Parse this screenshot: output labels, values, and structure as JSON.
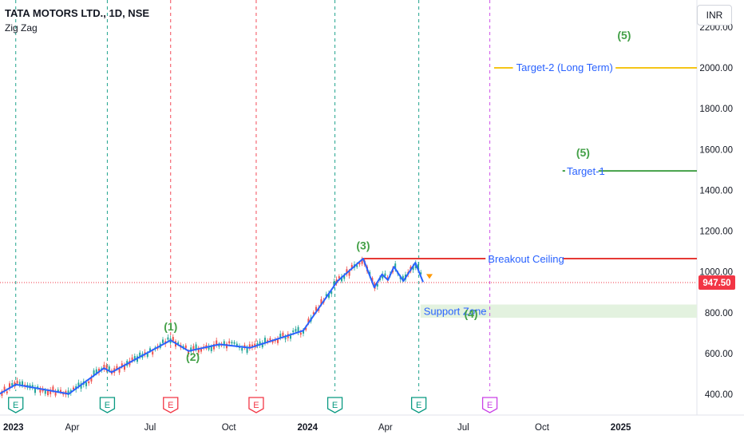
{
  "header": {
    "symbol_title": "TATA MOTORS LTD., 1D, NSE",
    "indicator": "Zig Zag",
    "currency": "INR"
  },
  "colors": {
    "zigzag": "#2962ff",
    "candle_up": "#26a69a",
    "candle_down": "#ef5350",
    "target2": "#f5c518",
    "target1": "#43a047",
    "breakout": "#e53935",
    "support_fill": "#e3f2df",
    "wave_label": "#43a047",
    "text_blue": "#2962ff",
    "price_badge": "#f23645",
    "earnings_green": "#089981",
    "earnings_red": "#f23645",
    "earnings_purple": "#c940e6"
  },
  "chart_data": {
    "type": "line",
    "title": "TATA MOTORS LTD., 1D, NSE",
    "indicator": "Zig Zag",
    "y_axis": {
      "ticks": [
        "400.00",
        "600.00",
        "800.00",
        "1000.00",
        "1200.00",
        "1400.00",
        "1600.00",
        "1800.00",
        "2000.00",
        "2200.00"
      ],
      "range": [
        320,
        2270
      ]
    },
    "x_axis": {
      "labels": [
        "2023",
        "Apr",
        "Jul",
        "Oct",
        "2024",
        "Apr",
        "Jul",
        "Oct",
        "2025"
      ],
      "start": "2023-01-01",
      "end": "2025-03-31"
    },
    "series": [
      {
        "type": "zigzag",
        "points": [
          {
            "x": "2023-01-01",
            "y": 390
          },
          {
            "x": "2023-01-25",
            "y": 448
          },
          {
            "x": "2023-03-28",
            "y": 402
          },
          {
            "x": "2023-05-08",
            "y": 528
          },
          {
            "x": "2023-05-17",
            "y": 508
          },
          {
            "x": "2023-07-25",
            "y": 665
          },
          {
            "x": "2023-08-15",
            "y": 612
          },
          {
            "x": "2023-09-20",
            "y": 645
          },
          {
            "x": "2023-10-26",
            "y": 628
          },
          {
            "x": "2023-12-27",
            "y": 712
          },
          {
            "x": "2024-02-05",
            "y": 955
          },
          {
            "x": "2024-03-06",
            "y": 1065
          },
          {
            "x": "2024-03-19",
            "y": 924
          },
          {
            "x": "2024-03-28",
            "y": 988
          },
          {
            "x": "2024-04-04",
            "y": 960
          },
          {
            "x": "2024-04-11",
            "y": 1025
          },
          {
            "x": "2024-04-22",
            "y": 955
          },
          {
            "x": "2024-05-06",
            "y": 1045
          },
          {
            "x": "2024-05-15",
            "y": 950
          }
        ]
      }
    ],
    "levels": [
      {
        "label": "Target-2 (Long Term)",
        "value": 2000
      },
      {
        "label": "Target-1",
        "value": 1495
      },
      {
        "label": "Breakout Ceiling",
        "value": 1065
      }
    ],
    "zones": [
      {
        "label": "Support Zone",
        "from": 775,
        "to": 840
      }
    ],
    "last_price": "947.50",
    "last_price_value": 947.5,
    "wave_labels": [
      {
        "text": "(1)",
        "x": "2023-07-25",
        "y": 712
      },
      {
        "text": "(2)",
        "x": "2023-08-20",
        "y": 565
      },
      {
        "text": "(3)",
        "x": "2024-03-06",
        "y": 1110
      },
      {
        "text": "(4)",
        "x": "2024-07-10",
        "y": 775
      },
      {
        "text": "(5)",
        "x": "2024-11-18",
        "y": 1565
      },
      {
        "text": "(5)",
        "x": "2025-01-05",
        "y": 2140
      }
    ],
    "earnings_markers": [
      {
        "date": "2023-01-25",
        "label": "E",
        "color": "green"
      },
      {
        "date": "2023-05-12",
        "label": "E",
        "color": "green"
      },
      {
        "date": "2023-07-25",
        "label": "E",
        "color": "red"
      },
      {
        "date": "2023-11-02",
        "label": "E",
        "color": "red"
      },
      {
        "date": "2024-02-02",
        "label": "E",
        "color": "green"
      },
      {
        "date": "2024-05-10",
        "label": "E",
        "color": "green"
      },
      {
        "date": "2024-08-01",
        "label": "E",
        "color": "purple"
      }
    ]
  }
}
